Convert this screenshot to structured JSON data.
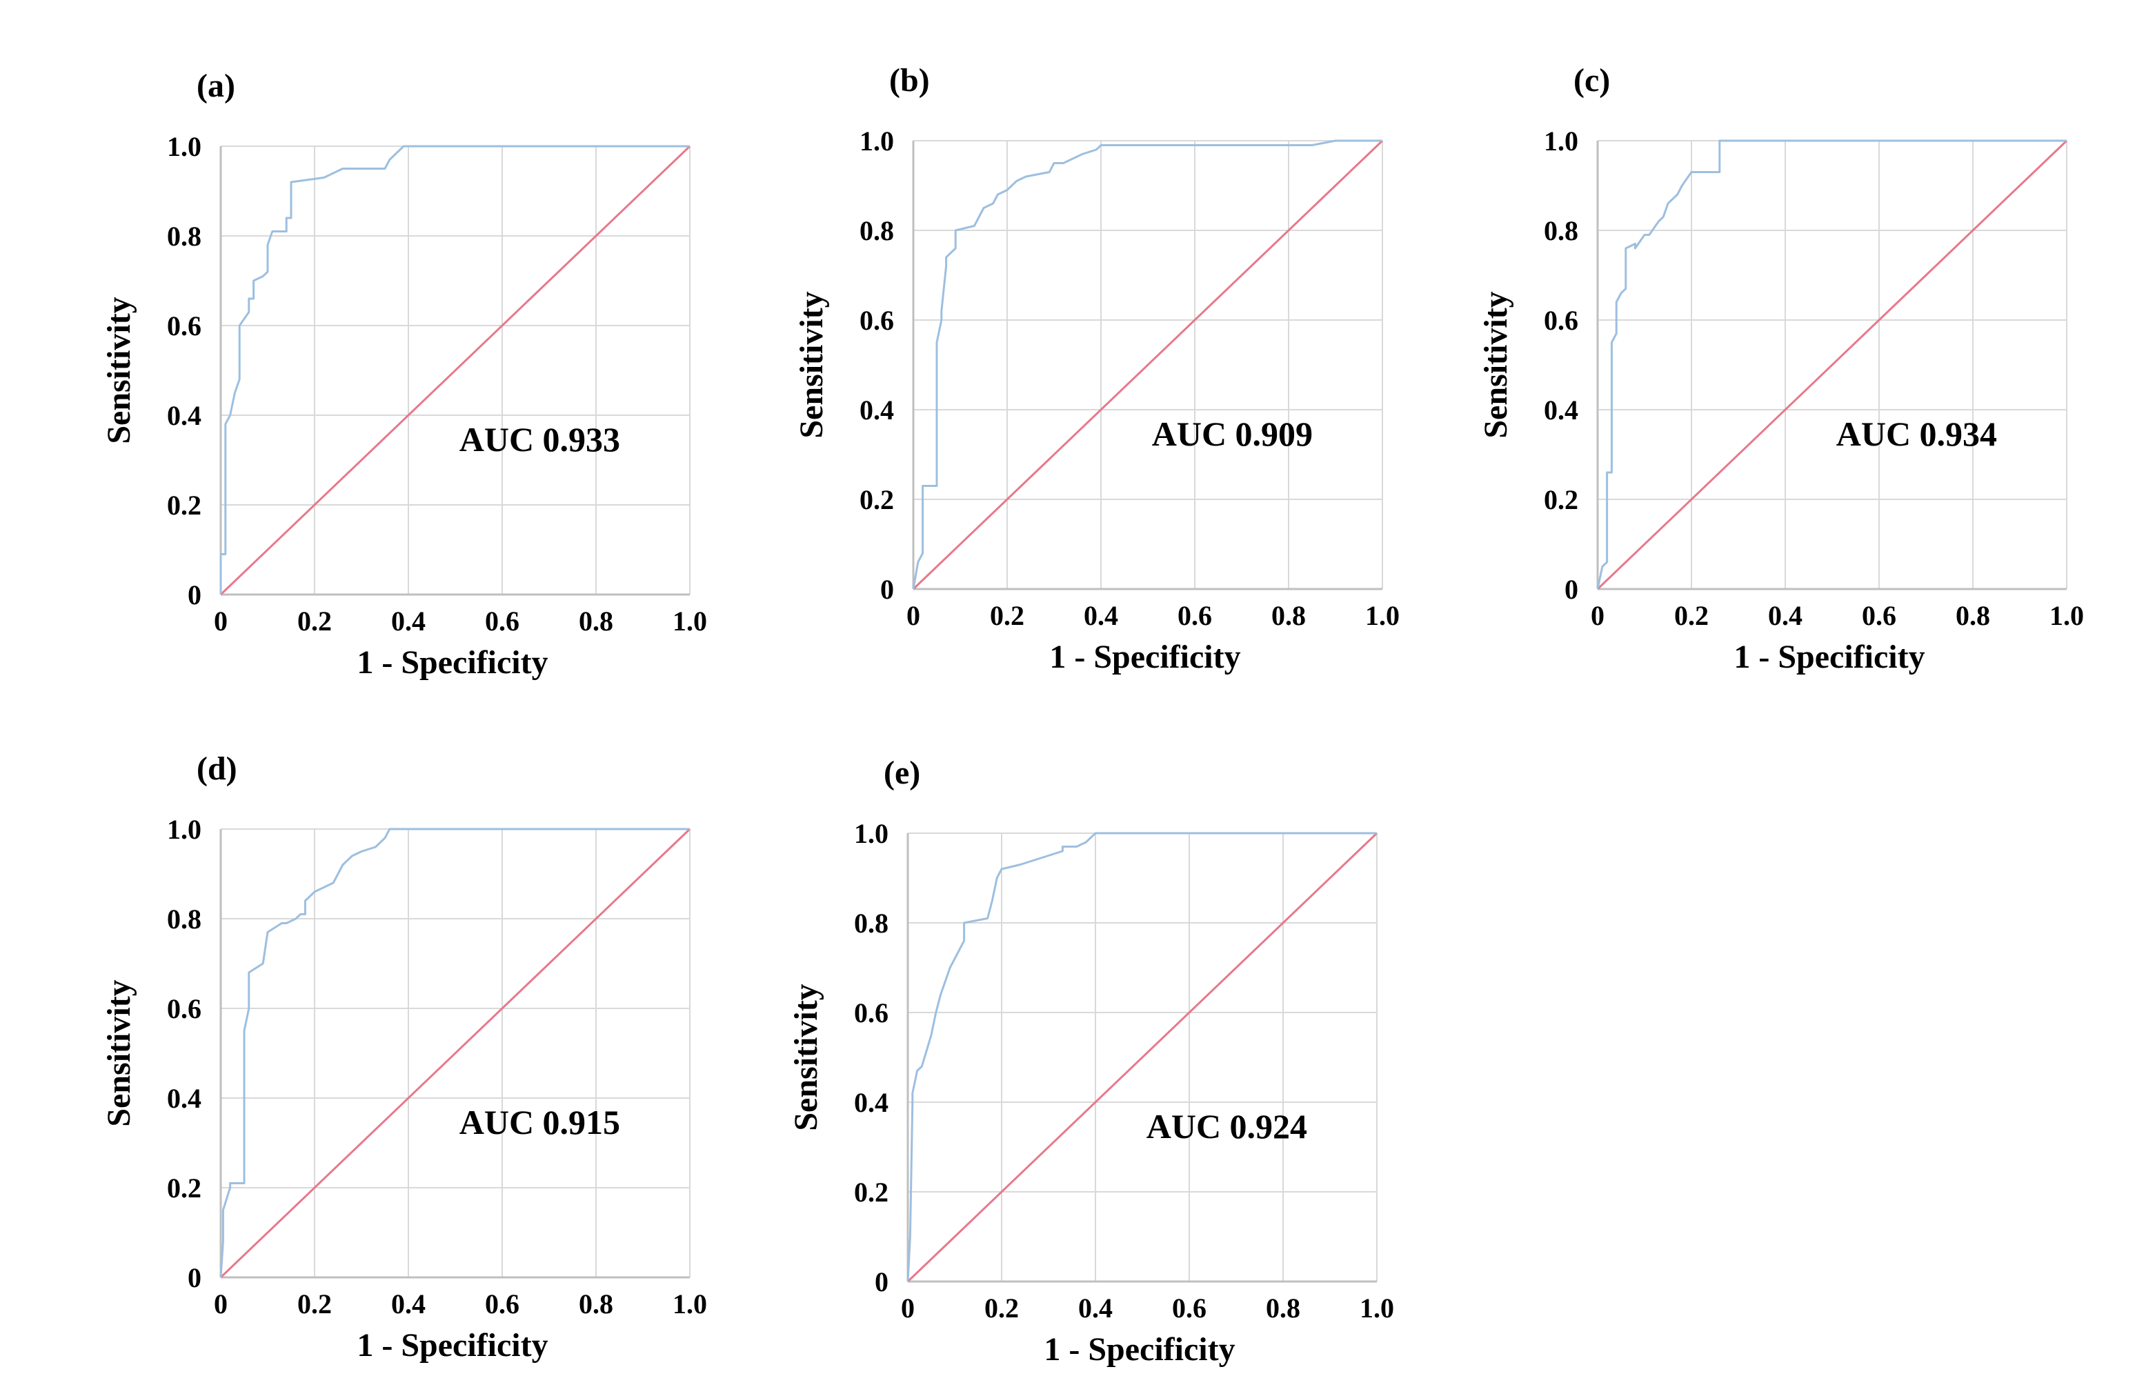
{
  "colors": {
    "roc_curve": "#9dbfe0",
    "reference_line": "#e8788c",
    "grid": "#d9d9d9",
    "axis": "#bfbfbf",
    "background": "#ffffff"
  },
  "chart_data": [
    {
      "type": "line",
      "panel_label": "(a)",
      "xlabel": "1 - Specificity",
      "ylabel": "Sensitivity",
      "xlim": [
        0,
        1.0
      ],
      "ylim": [
        0,
        1.0
      ],
      "x_ticks": [
        "0",
        "0.2",
        "0.4",
        "0.6",
        "0.8",
        "1.0"
      ],
      "y_ticks": [
        "0",
        "0.2",
        "0.4",
        "0.6",
        "0.8",
        "1.0"
      ],
      "grid": true,
      "annotation": "AUC 0.933",
      "series": [
        {
          "name": "ROC",
          "x": [
            0,
            0,
            0.01,
            0.01,
            0.02,
            0.03,
            0.04,
            0.04,
            0.06,
            0.06,
            0.07,
            0.07,
            0.09,
            0.1,
            0.1,
            0.11,
            0.14,
            0.14,
            0.15,
            0.15,
            0.15,
            0.22,
            0.26,
            0.35,
            0.36,
            0.37,
            0.38,
            0.39,
            1.0
          ],
          "y": [
            0,
            0.09,
            0.09,
            0.38,
            0.4,
            0.45,
            0.48,
            0.6,
            0.63,
            0.66,
            0.66,
            0.7,
            0.71,
            0.72,
            0.78,
            0.81,
            0.81,
            0.84,
            0.84,
            0.87,
            0.92,
            0.93,
            0.95,
            0.95,
            0.97,
            0.98,
            0.99,
            1.0,
            1.0
          ]
        },
        {
          "name": "Reference",
          "x": [
            0,
            1
          ],
          "y": [
            0,
            1
          ]
        }
      ]
    },
    {
      "type": "line",
      "panel_label": "(b)",
      "xlabel": "1 - Specificity",
      "ylabel": "Sensitivity",
      "xlim": [
        0,
        1.0
      ],
      "ylim": [
        0,
        1.0
      ],
      "x_ticks": [
        "0",
        "0.2",
        "0.4",
        "0.6",
        "0.8",
        "1.0"
      ],
      "y_ticks": [
        "0",
        "0.2",
        "0.4",
        "0.6",
        "0.8",
        "1.0"
      ],
      "grid": true,
      "annotation": "AUC 0.909",
      "series": [
        {
          "name": "ROC",
          "x": [
            0,
            0.01,
            0.02,
            0.02,
            0.03,
            0.05,
            0.05,
            0.06,
            0.06,
            0.07,
            0.07,
            0.08,
            0.09,
            0.09,
            0.13,
            0.14,
            0.15,
            0.17,
            0.18,
            0.2,
            0.22,
            0.24,
            0.29,
            0.3,
            0.32,
            0.36,
            0.39,
            0.4,
            0.85,
            0.9,
            1.0
          ],
          "y": [
            0,
            0.06,
            0.08,
            0.23,
            0.23,
            0.23,
            0.55,
            0.6,
            0.62,
            0.72,
            0.74,
            0.75,
            0.76,
            0.8,
            0.81,
            0.83,
            0.85,
            0.86,
            0.88,
            0.89,
            0.91,
            0.92,
            0.93,
            0.95,
            0.95,
            0.97,
            0.98,
            0.99,
            0.99,
            1.0,
            1.0
          ]
        },
        {
          "name": "Reference",
          "x": [
            0,
            1
          ],
          "y": [
            0,
            1
          ]
        }
      ]
    },
    {
      "type": "line",
      "panel_label": "(c)",
      "xlabel": "1 - Specificity",
      "ylabel": "Sensitivity",
      "xlim": [
        0,
        1.0
      ],
      "ylim": [
        0,
        1.0
      ],
      "x_ticks": [
        "0",
        "0.2",
        "0.4",
        "0.6",
        "0.8",
        "1.0"
      ],
      "y_ticks": [
        "0",
        "0.2",
        "0.4",
        "0.6",
        "0.8",
        "1.0"
      ],
      "grid": true,
      "annotation": "AUC 0.934",
      "series": [
        {
          "name": "ROC",
          "x": [
            0,
            0.01,
            0.02,
            0.02,
            0.03,
            0.03,
            0.04,
            0.04,
            0.05,
            0.06,
            0.06,
            0.08,
            0.08,
            0.1,
            0.11,
            0.13,
            0.14,
            0.15,
            0.16,
            0.17,
            0.18,
            0.2,
            0.22,
            0.26,
            0.26,
            1.0
          ],
          "y": [
            0,
            0.05,
            0.06,
            0.26,
            0.26,
            0.55,
            0.57,
            0.64,
            0.66,
            0.67,
            0.76,
            0.77,
            0.76,
            0.79,
            0.79,
            0.82,
            0.83,
            0.86,
            0.87,
            0.88,
            0.9,
            0.93,
            0.93,
            0.93,
            1.0,
            1.0
          ]
        },
        {
          "name": "Reference",
          "x": [
            0,
            1
          ],
          "y": [
            0,
            1
          ]
        }
      ]
    },
    {
      "type": "line",
      "panel_label": "(d)",
      "xlabel": "1 - Specificity",
      "ylabel": "Sensitivity",
      "xlim": [
        0,
        1.0
      ],
      "ylim": [
        0,
        1.0
      ],
      "x_ticks": [
        "0",
        "0.2",
        "0.4",
        "0.6",
        "0.8",
        "1.0"
      ],
      "y_ticks": [
        "0",
        "0.2",
        "0.4",
        "0.6",
        "0.8",
        "1.0"
      ],
      "grid": true,
      "annotation": "AUC 0.915",
      "series": [
        {
          "name": "ROC",
          "x": [
            0,
            0.005,
            0.005,
            0.02,
            0.02,
            0.05,
            0.05,
            0.06,
            0.06,
            0.09,
            0.1,
            0.13,
            0.14,
            0.16,
            0.17,
            0.18,
            0.18,
            0.2,
            0.22,
            0.24,
            0.25,
            0.26,
            0.28,
            0.3,
            0.33,
            0.35,
            0.36,
            1.0
          ],
          "y": [
            0,
            0.08,
            0.15,
            0.2,
            0.21,
            0.21,
            0.55,
            0.6,
            0.68,
            0.7,
            0.77,
            0.79,
            0.79,
            0.8,
            0.81,
            0.81,
            0.84,
            0.86,
            0.87,
            0.88,
            0.9,
            0.92,
            0.94,
            0.95,
            0.96,
            0.98,
            1.0,
            1.0
          ]
        },
        {
          "name": "Reference",
          "x": [
            0,
            1
          ],
          "y": [
            0,
            1
          ]
        }
      ]
    },
    {
      "type": "line",
      "panel_label": "(e)",
      "xlabel": "1 - Specificity",
      "ylabel": "Sensitivity",
      "xlim": [
        0,
        1.0
      ],
      "ylim": [
        0,
        1.0
      ],
      "x_ticks": [
        "0",
        "0.2",
        "0.4",
        "0.6",
        "0.8",
        "1.0"
      ],
      "y_ticks": [
        "0",
        "0.2",
        "0.4",
        "0.6",
        "0.8",
        "1.0"
      ],
      "grid": true,
      "annotation": "AUC 0.924",
      "series": [
        {
          "name": "ROC",
          "x": [
            0,
            0.005,
            0.01,
            0.01,
            0.02,
            0.03,
            0.05,
            0.06,
            0.07,
            0.08,
            0.09,
            0.1,
            0.12,
            0.12,
            0.17,
            0.18,
            0.19,
            0.2,
            0.24,
            0.3,
            0.33,
            0.33,
            0.36,
            0.38,
            0.4,
            1.0
          ],
          "y": [
            0,
            0.1,
            0.4,
            0.42,
            0.47,
            0.48,
            0.55,
            0.6,
            0.64,
            0.67,
            0.7,
            0.72,
            0.76,
            0.8,
            0.81,
            0.85,
            0.9,
            0.92,
            0.93,
            0.95,
            0.96,
            0.97,
            0.97,
            0.98,
            1.0,
            1.0
          ]
        },
        {
          "name": "Reference",
          "x": [
            0,
            1
          ],
          "y": [
            0,
            1
          ]
        }
      ]
    }
  ]
}
